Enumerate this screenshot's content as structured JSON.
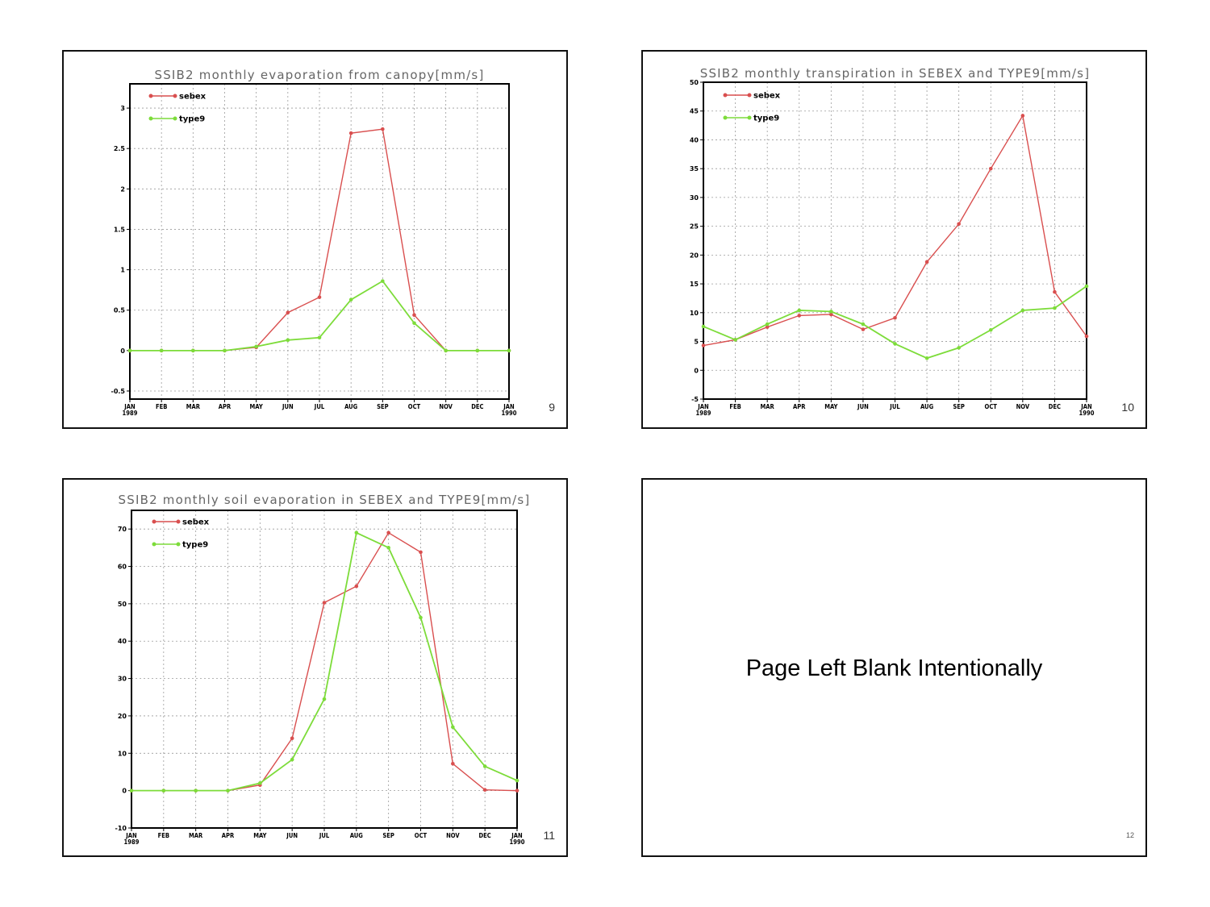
{
  "colors": {
    "sebex": "#d94f4f",
    "type9": "#7ddc3a",
    "grid": "#9a9a9a",
    "axis": "#000000",
    "title": "#666666"
  },
  "chart_data": [
    {
      "type": "line",
      "title": "SSIB2 monthly evaporation from canopy[mm/s]",
      "x": [
        "JAN\n1989",
        "FEB",
        "MAR",
        "APR",
        "MAY",
        "JUN",
        "JUL",
        "AUG",
        "SEP",
        "OCT",
        "NOV",
        "DEC",
        "JAN\n1990"
      ],
      "ylim": [
        -0.6,
        3.3
      ],
      "yticks": [
        -0.5,
        0,
        0.5,
        1,
        1.5,
        2,
        2.5,
        3
      ],
      "ytick_labels": [
        "-0.5",
        "0",
        "0.5",
        "1",
        "1.5",
        "2",
        "2.5",
        "3"
      ],
      "grid": true,
      "legend": "top-left",
      "page": "9",
      "series": [
        {
          "name": "sebex",
          "values": [
            0,
            0,
            0,
            0,
            0.04,
            0.47,
            0.66,
            2.69,
            2.74,
            0.44,
            0,
            0,
            0
          ]
        },
        {
          "name": "type9",
          "values": [
            0,
            0,
            0,
            0,
            0.05,
            0.13,
            0.16,
            0.63,
            0.86,
            0.34,
            0,
            0,
            0
          ]
        }
      ]
    },
    {
      "type": "line",
      "title": "SSIB2 monthly transpiration in SEBEX and TYPE9[mm/s]",
      "x": [
        "JAN\n1989",
        "FEB",
        "MAR",
        "APR",
        "MAY",
        "JUN",
        "JUL",
        "AUG",
        "SEP",
        "OCT",
        "NOV",
        "DEC",
        "JAN\n1990"
      ],
      "ylim": [
        -5,
        50
      ],
      "yticks": [
        -5,
        0,
        5,
        10,
        15,
        20,
        25,
        30,
        35,
        40,
        45,
        50
      ],
      "ytick_labels": [
        "-5",
        "0",
        "5",
        "10",
        "15",
        "20",
        "25",
        "30",
        "35",
        "40",
        "45",
        "50"
      ],
      "grid": true,
      "legend": "top-left",
      "page": "10",
      "series": [
        {
          "name": "sebex",
          "values": [
            4.3,
            5.3,
            7.5,
            9.5,
            9.7,
            7.1,
            9.1,
            18.8,
            25.4,
            35,
            44.2,
            13.6,
            5.9
          ]
        },
        {
          "name": "type9",
          "values": [
            7.6,
            5.3,
            8,
            10.4,
            10.2,
            8,
            4.6,
            2.1,
            3.9,
            7,
            10.4,
            10.8,
            14.6
          ]
        }
      ]
    },
    {
      "type": "line",
      "title": "SSIB2 monthly soil evaporation in SEBEX and TYPE9[mm/s]",
      "x": [
        "JAN\n1989",
        "FEB",
        "MAR",
        "APR",
        "MAY",
        "JUN",
        "JUL",
        "AUG",
        "SEP",
        "OCT",
        "NOV",
        "DEC",
        "JAN\n1990"
      ],
      "ylim": [
        -10,
        75
      ],
      "yticks": [
        -10,
        0,
        10,
        20,
        30,
        40,
        50,
        60,
        70
      ],
      "ytick_labels": [
        "-10",
        "0",
        "10",
        "20",
        "30",
        "40",
        "50",
        "60",
        "70"
      ],
      "grid": true,
      "legend": "top-left",
      "page": "11",
      "series": [
        {
          "name": "sebex",
          "values": [
            0,
            0,
            0,
            0,
            1.5,
            14,
            50.3,
            54.7,
            69,
            63.8,
            7.2,
            0.2,
            0
          ]
        },
        {
          "name": "type9",
          "values": [
            0,
            0,
            0,
            0,
            2,
            8.3,
            24.5,
            69,
            65,
            46.3,
            17,
            6.5,
            2.7
          ]
        }
      ]
    }
  ],
  "blank_slide": {
    "text": "Page Left Blank Intentionally",
    "page": "12"
  }
}
